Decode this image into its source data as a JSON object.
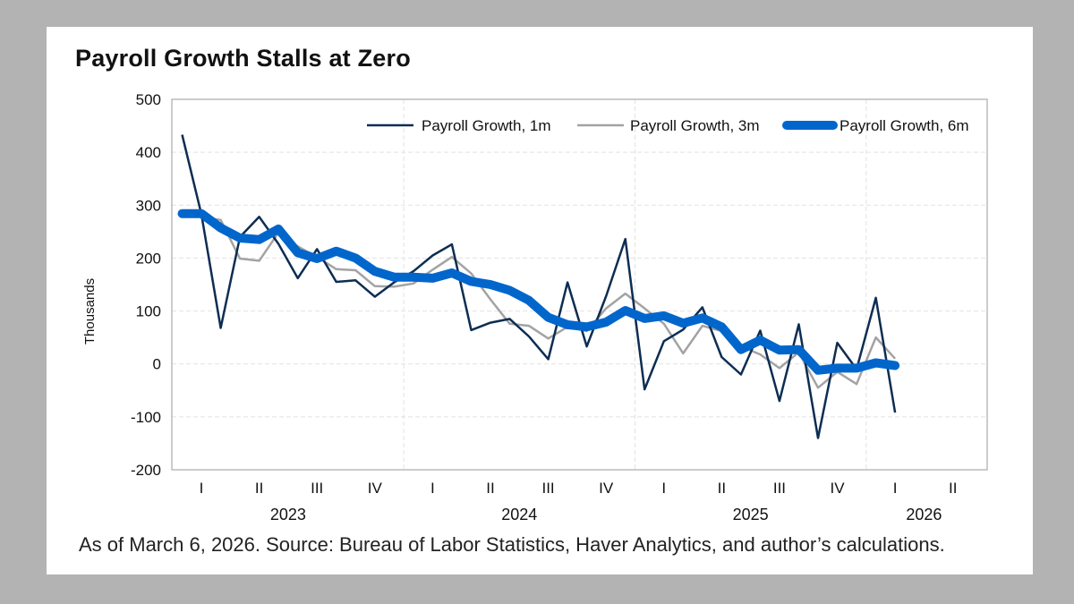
{
  "chart_data": {
    "type": "line",
    "title": "Payroll Growth Stalls at Zero",
    "ylabel": "Thousands",
    "xlabel": "",
    "ylim": [
      -200,
      500
    ],
    "yticks": [
      500,
      400,
      300,
      200,
      100,
      0,
      -100,
      -200
    ],
    "ytick_labels": [
      "500",
      "400",
      "300",
      "200",
      "100",
      "0",
      "-100",
      "-200"
    ],
    "grid": true,
    "legend_position": "top-right",
    "x_start_month_index": 0,
    "x_end_month_index": 40,
    "quarter_ticks": [
      {
        "label": "I",
        "month_index": 1
      },
      {
        "label": "II",
        "month_index": 4
      },
      {
        "label": "III",
        "month_index": 7
      },
      {
        "label": "IV",
        "month_index": 10
      },
      {
        "label": "I",
        "month_index": 13
      },
      {
        "label": "II",
        "month_index": 16
      },
      {
        "label": "III",
        "month_index": 19
      },
      {
        "label": "IV",
        "month_index": 22
      },
      {
        "label": "I",
        "month_index": 25
      },
      {
        "label": "II",
        "month_index": 28
      },
      {
        "label": "III",
        "month_index": 31
      },
      {
        "label": "IV",
        "month_index": 34
      },
      {
        "label": "I",
        "month_index": 37
      },
      {
        "label": "II",
        "month_index": 40
      }
    ],
    "year_labels": [
      {
        "label": "2023",
        "month_index": 5.5
      },
      {
        "label": "2024",
        "month_index": 17.5
      },
      {
        "label": "2025",
        "month_index": 29.5
      },
      {
        "label": "2026",
        "month_index": 38.5
      }
    ],
    "year_dividers": [
      11.5,
      23.5,
      35.5
    ],
    "series": [
      {
        "name": "Payroll Growth, 1m",
        "color": "#0d2d52",
        "values": [
          433,
          283,
          68,
          240,
          278,
          227,
          162,
          217,
          155,
          158,
          127,
          154,
          175,
          205,
          226,
          64,
          78,
          85,
          52,
          9,
          154,
          33,
          128,
          236,
          -48,
          43,
          65,
          107,
          13,
          -20,
          63,
          -70,
          75,
          -140,
          40,
          -10,
          125,
          -92
        ]
      },
      {
        "name": "Payroll Growth, 3m",
        "color": "#a3a3a3",
        "values": [
          280,
          278,
          272,
          199,
          195,
          248,
          222,
          202,
          179,
          177,
          147,
          146,
          152,
          178,
          202,
          171,
          122,
          76,
          72,
          48,
          70,
          62,
          105,
          133,
          105,
          76,
          20,
          72,
          62,
          33,
          18,
          -8,
          22,
          -45,
          -15,
          -38,
          50,
          10
        ]
      },
      {
        "name": "Payroll Growth, 6m",
        "color": "#0066cc",
        "values": [
          284,
          284,
          257,
          238,
          235,
          255,
          210,
          199,
          213,
          200,
          175,
          164,
          164,
          162,
          172,
          156,
          150,
          139,
          120,
          88,
          74,
          70,
          79,
          101,
          86,
          91,
          77,
          87,
          70,
          27,
          45,
          26,
          27,
          -12,
          -8,
          -8,
          2,
          -3
        ]
      }
    ]
  },
  "footer": {
    "source": "As of March 6, 2026. Source: Bureau of Labor Statistics, Haver Analytics, and author’s calculations."
  }
}
